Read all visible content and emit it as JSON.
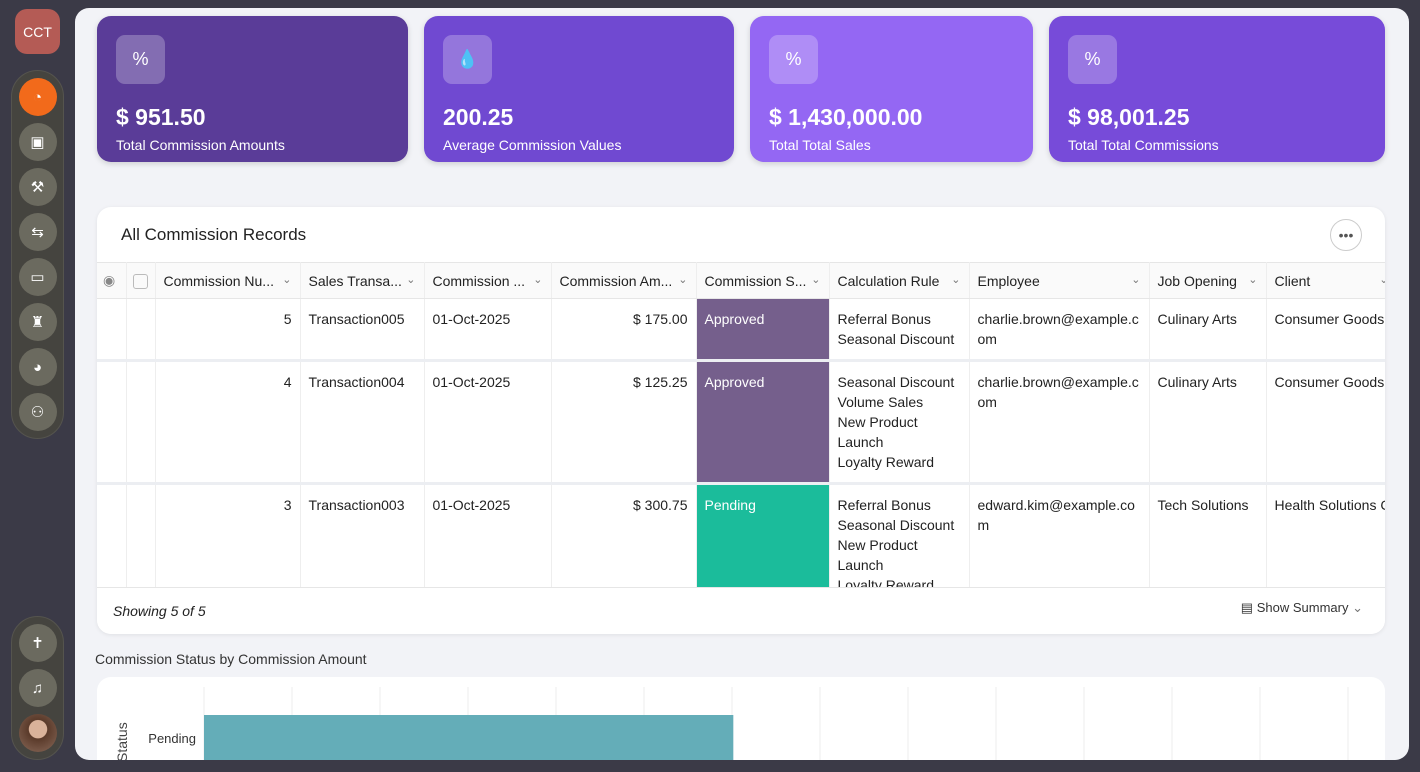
{
  "app": {
    "logo": "CCT"
  },
  "sidebar": {
    "items": [
      {
        "icon": "dashboard-icon",
        "active": true
      },
      {
        "icon": "clipboard-icon"
      },
      {
        "icon": "gavel-icon"
      },
      {
        "icon": "user-swap-icon"
      },
      {
        "icon": "monitor-chart-icon"
      },
      {
        "icon": "agent-icon"
      },
      {
        "icon": "user-clock-icon"
      },
      {
        "icon": "users-icon"
      }
    ],
    "bottom": [
      {
        "icon": "accessibility-icon"
      },
      {
        "icon": "bell-icon"
      },
      {
        "icon": "avatar"
      }
    ]
  },
  "kpis": [
    {
      "value": "$ 951.50",
      "label": "Total Commission Amounts",
      "color": "#5a3c98",
      "icon": "percent-icon"
    },
    {
      "value": "200.25",
      "label": "Average Commission Values",
      "color": "#7049d1",
      "icon": "drops-icon"
    },
    {
      "value": "$ 1,430,000.00",
      "label": "Total Total Sales",
      "color": "#9467f3",
      "icon": "percent-icon"
    },
    {
      "value": "$ 98,001.25",
      "label": "Total Total Commissions",
      "color": "#774bd9",
      "icon": "percent-icon"
    }
  ],
  "table": {
    "title": "All Commission Records",
    "columns": [
      "Commission Nu...",
      "Sales Transa...",
      "Commission ...",
      "Commission Am...",
      "Commission S...",
      "Calculation Rule",
      "Employee",
      "Job Opening",
      "Client"
    ],
    "rows": [
      {
        "num": "5",
        "trans": "Transaction005",
        "date": "01-Oct-2025",
        "amount": "$ 175.00",
        "status": "Approved",
        "status_color": "#755f8c",
        "rules": [
          "Referral Bonus",
          "Seasonal Discount"
        ],
        "employee": "charlie.brown@example.com",
        "job": "Culinary Arts",
        "client": "Consumer Goods Corp."
      },
      {
        "num": "4",
        "trans": "Transaction004",
        "date": "01-Oct-2025",
        "amount": "$ 125.25",
        "status": "Approved",
        "status_color": "#755f8c",
        "rules": [
          "Seasonal Discount",
          "Volume Sales",
          "New Product Launch",
          "Loyalty Reward"
        ],
        "employee": "charlie.brown@example.com",
        "job": "Culinary Arts",
        "client": "Consumer Goods Corp."
      },
      {
        "num": "3",
        "trans": "Transaction003",
        "date": "01-Oct-2025",
        "amount": "$ 300.75",
        "status": "Pending",
        "status_color": "#1bbc9b",
        "rules": [
          "Referral Bonus",
          "Seasonal Discount",
          "New Product Launch",
          "Loyalty Reward"
        ],
        "employee": "edward.kim@example.com",
        "job": "Tech Solutions",
        "client": "Health Solutions C"
      }
    ],
    "showing": "Showing 5 of 5",
    "summary": "Show Summary"
  },
  "chart_data": {
    "type": "bar",
    "orientation": "horizontal",
    "title": "Commission Status by Commission Amount",
    "ylabel": "Status",
    "categories": [
      "Pending"
    ],
    "values": [
      300.75
    ],
    "color": "#64adb8",
    "grid": true
  }
}
